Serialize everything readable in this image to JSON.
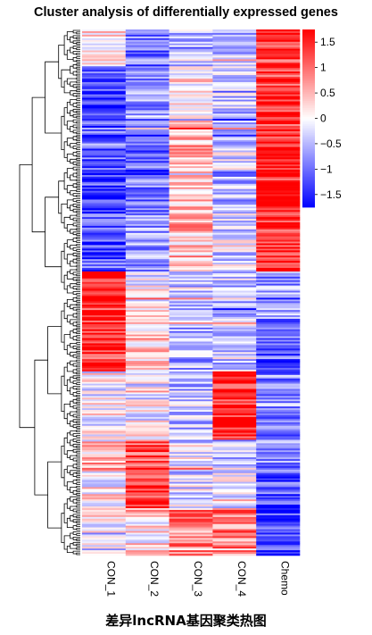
{
  "title": "Cluster analysis of differentially expressed genes",
  "footer_caption": "差异lncRNA基因聚类热图",
  "colors": {
    "low": "#0000ff",
    "mid": "#ffffff",
    "high": "#ff0000"
  },
  "chart_data": {
    "type": "heatmap",
    "title": "Cluster analysis of differentially expressed genes",
    "columns": [
      "CON_1",
      "CON_2",
      "CON_3",
      "CON_4",
      "Chemo"
    ],
    "row_dendrogram": true,
    "colorbar": {
      "ticks": [
        1.5,
        1,
        0.5,
        0,
        -0.5,
        -1,
        -1.5
      ],
      "tick_labels": [
        "1.5",
        "1",
        "0.5",
        "0",
        "−0.5",
        "−1",
        "−1.5"
      ],
      "range": [
        -1.75,
        1.75
      ],
      "colors": [
        "#0000ff",
        "#ffffff",
        "#ff0000"
      ]
    },
    "row_blocks": [
      {
        "rows_pct": 7,
        "values": [
          0.2,
          -0.9,
          -0.6,
          -0.6,
          1.5
        ]
      },
      {
        "rows_pct": 12,
        "values": [
          -1.3,
          -0.7,
          0.1,
          -0.4,
          1.4
        ]
      },
      {
        "rows_pct": 8,
        "values": [
          -1.0,
          -1.1,
          0.6,
          -0.3,
          1.6
        ]
      },
      {
        "rows_pct": 8,
        "values": [
          -1.4,
          -0.8,
          0.3,
          -0.6,
          1.5
        ]
      },
      {
        "rows_pct": 11,
        "values": [
          -1.2,
          -0.6,
          0.5,
          -0.2,
          1.5
        ]
      },
      {
        "rows_pct": 9,
        "values": [
          1.6,
          0.0,
          -0.3,
          -0.4,
          -0.7
        ]
      },
      {
        "rows_pct": 10,
        "values": [
          1.4,
          0.4,
          -0.6,
          -0.3,
          -1.1
        ]
      },
      {
        "rows_pct": 13,
        "values": [
          0.0,
          -0.1,
          -0.4,
          1.5,
          -0.8
        ]
      },
      {
        "rows_pct": 6,
        "values": [
          0.5,
          1.2,
          -0.2,
          -0.3,
          -0.9
        ]
      },
      {
        "rows_pct": 7,
        "values": [
          0.1,
          1.4,
          -0.3,
          -0.2,
          -1.2
        ]
      },
      {
        "rows_pct": 9,
        "values": [
          0.0,
          0.2,
          0.8,
          0.9,
          -1.3
        ]
      }
    ]
  }
}
